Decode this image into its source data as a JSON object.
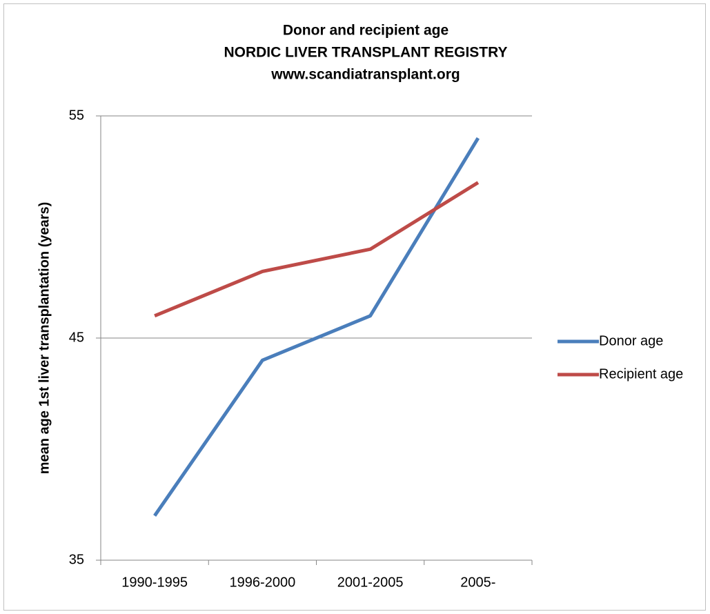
{
  "chart_data": {
    "type": "line",
    "title": [
      "Donor and recipient age",
      "NORDIC LIVER TRANSPLANT REGISTRY",
      "www.scandiatransplant.org"
    ],
    "y_label": "mean  age 1st liver transplantation (years)",
    "categories": [
      "1990-1995",
      "1996-2000",
      "2001-2005",
      "2005-"
    ],
    "series": [
      {
        "name": "Donor age",
        "color": "#4a7ebb",
        "values": [
          37,
          44,
          46,
          54
        ]
      },
      {
        "name": "Recipient age",
        "color": "#be4b48",
        "values": [
          46,
          48,
          49,
          52
        ]
      }
    ],
    "ylim": [
      35,
      55
    ],
    "yticks": [
      35,
      45,
      55
    ],
    "grid": true,
    "legend": "right"
  }
}
